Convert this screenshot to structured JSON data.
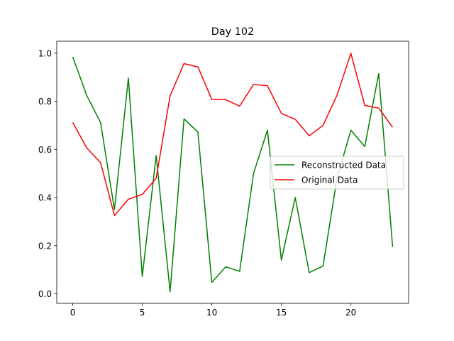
{
  "chart_data": {
    "type": "line",
    "title": "Day 102",
    "xlabel": "",
    "ylabel": "",
    "xlim": [
      -1.15,
      24.15
    ],
    "ylim": [
      -0.04,
      1.05
    ],
    "xticks": [
      0,
      5,
      10,
      15,
      20
    ],
    "yticks": [
      0.0,
      0.2,
      0.4,
      0.6,
      0.8,
      1.0
    ],
    "xtick_labels": [
      "0",
      "5",
      "10",
      "15",
      "20"
    ],
    "ytick_labels": [
      "0.0",
      "0.2",
      "0.4",
      "0.6",
      "0.8",
      "1.0"
    ],
    "legend_position": "center-right",
    "grid": false,
    "x": [
      0,
      1,
      2,
      3,
      4,
      5,
      6,
      7,
      8,
      9,
      10,
      11,
      12,
      13,
      14,
      15,
      16,
      17,
      18,
      19,
      20,
      21,
      22,
      23
    ],
    "series": [
      {
        "name": "Reconstructed Data",
        "color": "#008000",
        "values": [
          0.985,
          0.825,
          0.712,
          0.35,
          0.897,
          0.072,
          0.575,
          0.008,
          0.727,
          0.672,
          0.047,
          0.112,
          0.093,
          0.5,
          0.68,
          0.14,
          0.4,
          0.088,
          0.115,
          0.48,
          0.68,
          0.612,
          0.915,
          0.195
        ]
      },
      {
        "name": "Original Data",
        "color": "#ff0000",
        "values": [
          0.712,
          0.607,
          0.545,
          0.325,
          0.393,
          0.413,
          0.48,
          0.823,
          0.957,
          0.943,
          0.808,
          0.807,
          0.78,
          0.87,
          0.865,
          0.75,
          0.725,
          0.657,
          0.7,
          0.825,
          1.0,
          0.783,
          0.772,
          0.692
        ]
      }
    ]
  }
}
